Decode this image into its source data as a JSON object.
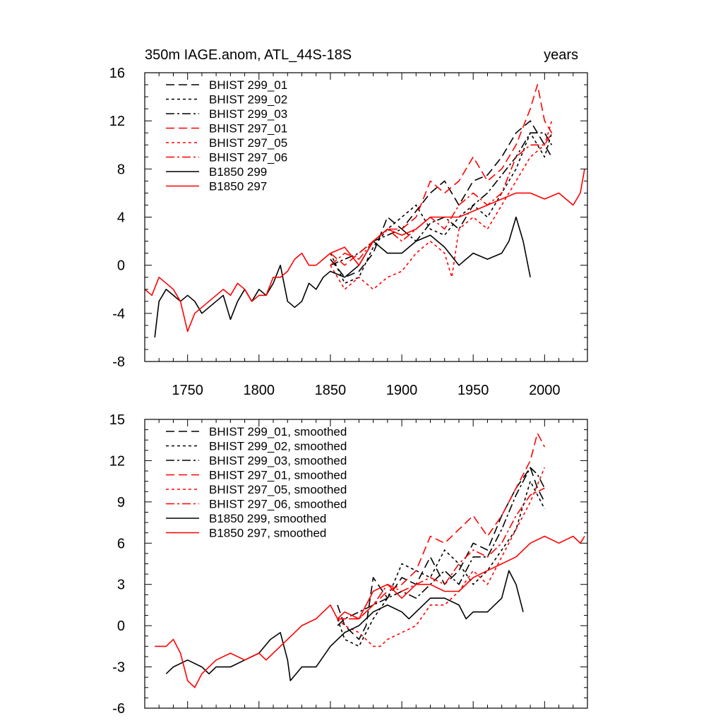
{
  "figure": {
    "title_left": "350m IAGE.anom, ATL_44S-18S",
    "title_right": "years"
  },
  "chart_data": [
    {
      "type": "line",
      "panel": "top",
      "xlim": [
        1720,
        2030
      ],
      "ylim": [
        -8,
        16
      ],
      "xticks": [
        1750,
        1800,
        1850,
        1900,
        1950,
        2000
      ],
      "yticks": [
        -8,
        -4,
        0,
        4,
        8,
        12,
        16
      ],
      "show_x_tick_labels": true,
      "legend": "top-left",
      "series": [
        {
          "name": "BHIST 299_01",
          "color": "#000000",
          "dash": "12,6",
          "x": [
            1850,
            1860,
            1870,
            1880,
            1890,
            1900,
            1910,
            1920,
            1930,
            1940,
            1950,
            1960,
            1970,
            1980,
            1990,
            2000,
            2005
          ],
          "y": [
            0.5,
            -1,
            -0.5,
            1,
            4,
            3,
            4.5,
            6,
            7,
            5,
            7,
            7.5,
            9,
            11,
            12,
            10,
            9
          ]
        },
        {
          "name": "BHIST 299_02",
          "color": "#000000",
          "dash": "4,4",
          "x": [
            1850,
            1860,
            1870,
            1880,
            1890,
            1900,
            1910,
            1920,
            1930,
            1940,
            1950,
            1960,
            1970,
            1980,
            1990,
            2000,
            2005
          ],
          "y": [
            1,
            -1.5,
            -1,
            1.5,
            3,
            4,
            5,
            3,
            2.5,
            4,
            5,
            4,
            6,
            8,
            11,
            9,
            11
          ]
        },
        {
          "name": "BHIST 299_03",
          "color": "#000000",
          "dash": "12,4,3,4",
          "x": [
            1850,
            1860,
            1870,
            1880,
            1890,
            1900,
            1910,
            1920,
            1930,
            1940,
            1950,
            1960,
            1970,
            1980,
            1990,
            2000,
            2005
          ],
          "y": [
            0,
            0.5,
            1,
            2,
            2.5,
            3,
            2,
            3.5,
            4,
            3,
            5,
            6,
            7.5,
            9,
            11,
            11,
            10
          ]
        },
        {
          "name": "BHIST 297_01",
          "color": "#ff0000",
          "dash": "12,6",
          "x": [
            1850,
            1860,
            1870,
            1880,
            1890,
            1900,
            1910,
            1920,
            1930,
            1940,
            1950,
            1960,
            1970,
            1980,
            1990,
            1995,
            2000,
            2005
          ],
          "y": [
            1,
            0,
            1,
            2,
            3,
            3,
            4,
            7,
            6,
            7,
            9,
            7,
            8,
            10,
            13,
            15,
            12,
            11
          ]
        },
        {
          "name": "BHIST 297_05",
          "color": "#ff0000",
          "dash": "4,4",
          "x": [
            1850,
            1860,
            1870,
            1880,
            1890,
            1900,
            1910,
            1920,
            1930,
            1935,
            1940,
            1950,
            1960,
            1970,
            1980,
            1990,
            2000,
            2005
          ],
          "y": [
            0,
            -2,
            -1,
            -2,
            -1,
            -0.5,
            1,
            2,
            1,
            -1,
            3,
            4,
            3,
            5,
            7,
            9,
            10,
            12
          ]
        },
        {
          "name": "BHIST 297_06",
          "color": "#ff0000",
          "dash": "12,4,3,4",
          "x": [
            1850,
            1860,
            1870,
            1880,
            1890,
            1900,
            1910,
            1920,
            1930,
            1940,
            1950,
            1960,
            1970,
            1980,
            1990,
            2000,
            2005
          ],
          "y": [
            0,
            1,
            0.5,
            2,
            3,
            2,
            3,
            4,
            3,
            5,
            6,
            5,
            6,
            9,
            10,
            10,
            11
          ]
        },
        {
          "name": "B1850 299",
          "color": "#000000",
          "dash": "",
          "x": [
            1727,
            1730,
            1735,
            1740,
            1745,
            1750,
            1755,
            1760,
            1765,
            1770,
            1775,
            1780,
            1785,
            1790,
            1795,
            1800,
            1805,
            1810,
            1815,
            1820,
            1825,
            1830,
            1835,
            1840,
            1845,
            1850,
            1860,
            1870,
            1880,
            1890,
            1900,
            1910,
            1920,
            1930,
            1940,
            1950,
            1960,
            1970,
            1975,
            1980,
            1985,
            1990
          ],
          "y": [
            -6,
            -3,
            -2,
            -2.5,
            -3,
            -2.5,
            -3,
            -4,
            -3.5,
            -3,
            -2.5,
            -4.5,
            -3,
            -2,
            -3,
            -2,
            -2.5,
            -1.5,
            0,
            -3,
            -3.5,
            -3,
            -1.5,
            -2,
            -1,
            -0.5,
            -1,
            0,
            2,
            1,
            1,
            2,
            2.5,
            1.5,
            0,
            1,
            0.5,
            1,
            2,
            4,
            2,
            -1
          ]
        },
        {
          "name": "B1850 297",
          "color": "#ff0000",
          "dash": "",
          "x": [
            1720,
            1725,
            1730,
            1735,
            1740,
            1745,
            1750,
            1755,
            1760,
            1765,
            1770,
            1775,
            1780,
            1785,
            1790,
            1795,
            1800,
            1805,
            1810,
            1815,
            1820,
            1825,
            1830,
            1835,
            1840,
            1845,
            1850,
            1860,
            1870,
            1880,
            1890,
            1900,
            1910,
            1920,
            1930,
            1940,
            1950,
            1960,
            1970,
            1980,
            1990,
            2000,
            2010,
            2020,
            2025,
            2028
          ],
          "y": [
            -2,
            -2.5,
            -1,
            -1.5,
            -2,
            -3,
            -5.5,
            -4,
            -3.5,
            -3,
            -2.5,
            -2,
            -2.5,
            -1.5,
            -2,
            -3,
            -2.5,
            -2.5,
            -1,
            -1,
            -0.5,
            0.5,
            1,
            0,
            0,
            0.5,
            1,
            1.5,
            0,
            2,
            3,
            2.5,
            3,
            4,
            4,
            4,
            4.5,
            5,
            5.5,
            6,
            6,
            5.5,
            6,
            5,
            6,
            8
          ]
        }
      ]
    },
    {
      "type": "line",
      "panel": "bottom",
      "xlim": [
        1720,
        2030
      ],
      "ylim": [
        -6,
        15
      ],
      "xticks": [
        1750,
        1800,
        1850,
        1900,
        1950,
        2000
      ],
      "yticks": [
        -6,
        -3,
        0,
        3,
        6,
        9,
        12,
        15
      ],
      "show_x_tick_labels": false,
      "legend": "top-left",
      "series": [
        {
          "name": "BHIST 299_01, smoothed",
          "color": "#000000",
          "dash": "12,6",
          "x": [
            1855,
            1860,
            1870,
            1875,
            1880,
            1890,
            1900,
            1910,
            1920,
            1930,
            1940,
            1950,
            1960,
            1970,
            1980,
            1990,
            1995,
            2000
          ],
          "y": [
            1.5,
            0,
            -1,
            0,
            3.5,
            2,
            3.5,
            3,
            5,
            3,
            4,
            6,
            5.5,
            8,
            10,
            11.5,
            10,
            9
          ]
        },
        {
          "name": "BHIST 299_02, smoothed",
          "color": "#000000",
          "dash": "4,4",
          "x": [
            1855,
            1860,
            1870,
            1880,
            1890,
            1900,
            1910,
            1920,
            1930,
            1940,
            1950,
            1960,
            1970,
            1980,
            1990,
            2000
          ],
          "y": [
            0.5,
            -1,
            -1.5,
            0.5,
            2,
            4.5,
            4,
            3.5,
            5.5,
            4.5,
            3,
            4,
            5.5,
            7,
            10.5,
            8.5
          ]
        },
        {
          "name": "BHIST 299_03, smoothed",
          "color": "#000000",
          "dash": "12,4,3,4",
          "x": [
            1855,
            1860,
            1870,
            1880,
            1890,
            1900,
            1910,
            1920,
            1930,
            1940,
            1950,
            1960,
            1970,
            1980,
            1990,
            1995,
            2000
          ],
          "y": [
            0,
            0.5,
            1,
            1.5,
            2,
            2.5,
            2,
            3,
            4,
            3,
            5,
            5,
            7,
            9.5,
            11.5,
            11,
            10
          ]
        },
        {
          "name": "BHIST 297_01, smoothed",
          "color": "#ff0000",
          "dash": "12,6",
          "x": [
            1855,
            1860,
            1870,
            1880,
            1890,
            1900,
            1910,
            1920,
            1930,
            1940,
            1950,
            1960,
            1970,
            1980,
            1990,
            1995,
            2000
          ],
          "y": [
            0.5,
            0.5,
            0.5,
            1.5,
            2.5,
            3,
            4,
            6.5,
            6,
            7,
            8,
            6.5,
            8,
            10,
            12,
            14,
            13
          ]
        },
        {
          "name": "BHIST 297_05, smoothed",
          "color": "#ff0000",
          "dash": "4,4",
          "x": [
            1855,
            1860,
            1870,
            1880,
            1885,
            1890,
            1900,
            1910,
            1920,
            1930,
            1940,
            1950,
            1960,
            1970,
            1980,
            1990,
            2000
          ],
          "y": [
            0.5,
            0,
            -0.5,
            -1.5,
            -1.5,
            -1,
            -0.5,
            0,
            1.5,
            1.5,
            2.5,
            4,
            3,
            5,
            7,
            9,
            11.5
          ]
        },
        {
          "name": "BHIST 297_06, smoothed",
          "color": "#ff0000",
          "dash": "12,4,3,4",
          "x": [
            1855,
            1860,
            1870,
            1880,
            1890,
            1900,
            1910,
            1920,
            1930,
            1940,
            1950,
            1960,
            1970,
            1980,
            1990,
            2000
          ],
          "y": [
            0.5,
            0.5,
            0.5,
            1.5,
            3,
            2.5,
            3,
            3.5,
            3,
            4.5,
            5.5,
            5,
            6,
            8,
            9.5,
            10
          ]
        },
        {
          "name": "B1850 299, smoothed",
          "color": "#000000",
          "dash": "",
          "x": [
            1735,
            1740,
            1750,
            1760,
            1765,
            1770,
            1780,
            1790,
            1800,
            1808,
            1815,
            1820,
            1822,
            1830,
            1840,
            1850,
            1860,
            1870,
            1880,
            1890,
            1900,
            1905,
            1910,
            1920,
            1930,
            1940,
            1945,
            1950,
            1960,
            1970,
            1975,
            1980,
            1985
          ],
          "y": [
            -3.5,
            -3,
            -2.5,
            -3,
            -3.5,
            -3,
            -3,
            -2.5,
            -2,
            -1,
            -0.5,
            -2.5,
            -4,
            -3,
            -3,
            -1.5,
            -0.5,
            0,
            1,
            1.5,
            1,
            0.5,
            1,
            2,
            2,
            1.5,
            0.5,
            1,
            1,
            2,
            4,
            3,
            1
          ]
        },
        {
          "name": "B1850 297, smoothed",
          "color": "#ff0000",
          "dash": "",
          "x": [
            1727,
            1730,
            1735,
            1740,
            1745,
            1750,
            1755,
            1760,
            1770,
            1780,
            1790,
            1800,
            1805,
            1810,
            1820,
            1830,
            1840,
            1850,
            1855,
            1860,
            1870,
            1880,
            1890,
            1900,
            1910,
            1920,
            1930,
            1940,
            1950,
            1960,
            1970,
            1980,
            1990,
            2000,
            2010,
            2020,
            2025,
            2028
          ],
          "y": [
            -1.5,
            -1.5,
            -1.5,
            -1,
            -2,
            -4,
            -4.5,
            -3.5,
            -2.5,
            -2,
            -2.5,
            -2,
            -2.5,
            -2,
            -1,
            0,
            0.5,
            1.5,
            0.5,
            1,
            0.5,
            2.5,
            3,
            2,
            3,
            3,
            2.5,
            2.5,
            3.5,
            4,
            4.5,
            5,
            6,
            6.5,
            6,
            6.5,
            6,
            6.5
          ]
        }
      ]
    }
  ]
}
